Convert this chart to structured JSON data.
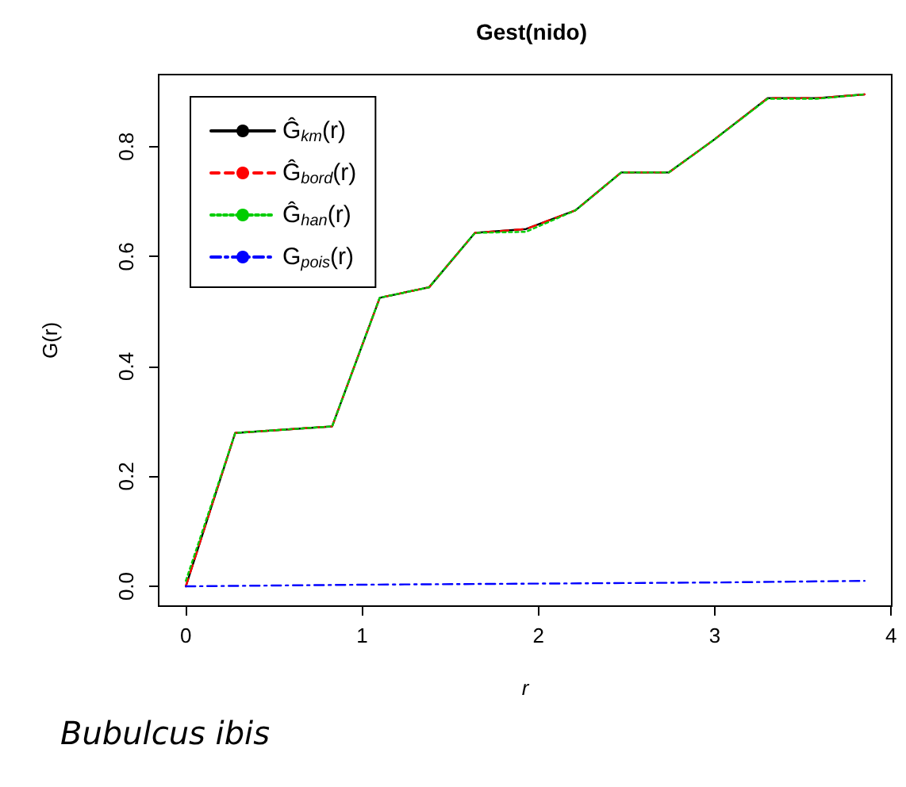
{
  "chart_data": {
    "type": "line",
    "title": "Gest(nido)",
    "xlabel": "r",
    "ylabel": "G(r)",
    "annotations": [
      "Bubulcus ibis"
    ],
    "xlim": [
      -0.154,
      4.004
    ],
    "xticks": [
      0,
      1,
      2,
      3,
      4
    ],
    "ylim": [
      -0.036,
      0.931
    ],
    "yticks": [
      {
        "value": 0,
        "label": "0.0"
      },
      {
        "value": 0.2,
        "label": "0.2"
      },
      {
        "value": 0.4,
        "label": "0.4"
      },
      {
        "value": 0.6,
        "label": "0.6"
      },
      {
        "value": 0.8,
        "label": "0.8"
      }
    ],
    "grid": false,
    "legend": "top left",
    "marker": "none",
    "x": [
      0,
      0.28,
      0.83,
      1.1,
      1.38,
      1.64,
      1.93,
      2.21,
      2.47,
      2.74,
      2.99,
      3.3,
      3.58,
      3.85
    ],
    "series": [
      {
        "name": "Ĝ$_{km}$(r)",
        "color": "#000000",
        "line_style": "solid",
        "values": [
          0,
          0.279,
          0.291,
          0.525,
          0.544,
          0.643,
          0.65,
          0.684,
          0.753,
          0.753,
          0.811,
          0.888,
          0.888,
          0.895
        ]
      },
      {
        "name": "Ĝ$_{bord}$(r)",
        "color": "#ff0000",
        "line_style": "dashed",
        "values": [
          0,
          0.279,
          0.291,
          0.525,
          0.544,
          0.643,
          0.65,
          0.684,
          0.753,
          0.753,
          0.811,
          0.888,
          0.888,
          0.895
        ]
      },
      {
        "name": "Ĝ$_{han}$(r)",
        "color": "#00cd00",
        "line_style": "dotted",
        "values": [
          0.01,
          0.279,
          0.291,
          0.525,
          0.544,
          0.643,
          0.645,
          0.684,
          0.753,
          0.753,
          0.811,
          0.887,
          0.887,
          0.895
        ]
      },
      {
        "name": "G$_{pois}$(r)",
        "color": "#0000ff",
        "line_style": "dashdot",
        "x": [
          0,
          1,
          2,
          3,
          3.85
        ],
        "values": [
          0,
          0.003,
          0.005,
          0.007,
          0.01
        ]
      }
    ]
  }
}
